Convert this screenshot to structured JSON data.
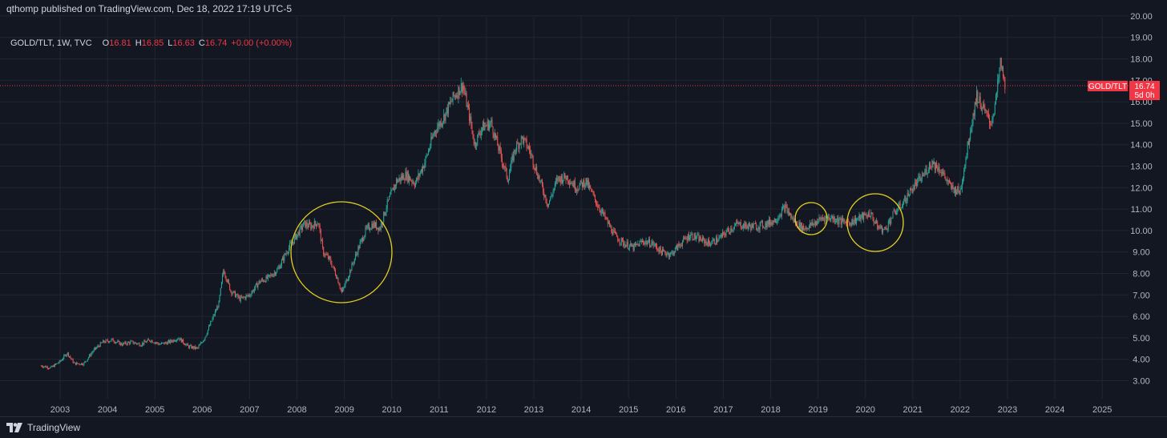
{
  "header": {
    "publish_text": "qthomp published on TradingView.com, Dec 18, 2022 17:19 UTC-5"
  },
  "legend": {
    "symbol": "GOLD/TLT, 1W, TVC",
    "o_label": "O",
    "o_value": "16.81",
    "h_label": "H",
    "h_value": "16.85",
    "l_label": "L",
    "l_value": "16.63",
    "c_label": "C",
    "c_value": "16.74",
    "change": "+0.00 (+0.00%)"
  },
  "price_tag": {
    "name": "GOLD/TLT",
    "price": "16.74",
    "countdown": "5d 0h",
    "color": "#f23645"
  },
  "footer": {
    "brand": "TradingView"
  },
  "colors": {
    "up": "#26a69a",
    "down": "#ef5350",
    "circle": "#e6d11e",
    "grid": "#222632",
    "text": "#b2b5be"
  },
  "chart_data": {
    "type": "candlestick",
    "title": "GOLD/TLT, 1W, TVC",
    "ylim": [
      2.5,
      20.0
    ],
    "y_ticks": [
      "3.00",
      "4.00",
      "5.00",
      "6.00",
      "7.00",
      "8.00",
      "9.00",
      "10.00",
      "11.00",
      "12.00",
      "13.00",
      "14.00",
      "15.00",
      "16.00",
      "17.00",
      "18.00",
      "19.00",
      "20.00"
    ],
    "x_ticks": [
      "2003",
      "2004",
      "2005",
      "2006",
      "2007",
      "2008",
      "2009",
      "2010",
      "2011",
      "2012",
      "2013",
      "2014",
      "2015",
      "2016",
      "2017",
      "2018",
      "2019",
      "2020",
      "2021",
      "2022",
      "2023",
      "2024",
      "2025"
    ],
    "x_range": [
      2002.52,
      2025.9
    ],
    "last_close": 16.74,
    "series": [
      {
        "x": [
          2002.6,
          2002.8,
          2003.0,
          2003.15,
          2003.3,
          2003.5,
          2003.7,
          2003.9,
          2004.1,
          2004.3,
          2004.5,
          2004.7,
          2004.9,
          2005.1,
          2005.3,
          2005.5,
          2005.7,
          2005.9,
          2006.05,
          2006.2,
          2006.35,
          2006.45,
          2006.6,
          2006.8,
          2007.0,
          2007.2,
          2007.4,
          2007.6,
          2007.8,
          2008.0,
          2008.15,
          2008.3,
          2008.45,
          2008.55,
          2008.7,
          2008.85,
          2008.95,
          2009.1,
          2009.3,
          2009.45,
          2009.6,
          2009.75,
          2009.9,
          2010.1,
          2010.3,
          2010.5,
          2010.7,
          2010.9,
          2011.1,
          2011.3,
          2011.5,
          2011.65,
          2011.75,
          2011.9,
          2012.1,
          2012.3,
          2012.45,
          2012.6,
          2012.75,
          2012.9,
          2013.1,
          2013.3,
          2013.5,
          2013.7,
          2013.9,
          2014.1,
          2014.3,
          2014.5,
          2014.7,
          2014.9,
          2015.1,
          2015.3,
          2015.5,
          2015.7,
          2015.9,
          2016.1,
          2016.3,
          2016.5,
          2016.7,
          2016.9,
          2017.1,
          2017.3,
          2017.5,
          2017.7,
          2017.9,
          2018.1,
          2018.3,
          2018.5,
          2018.7,
          2018.9,
          2019.1,
          2019.3,
          2019.5,
          2019.7,
          2019.9,
          2020.1,
          2020.25,
          2020.4,
          2020.6,
          2020.8,
          2021.0,
          2021.2,
          2021.4,
          2021.6,
          2021.8,
          2022.0,
          2022.2,
          2022.35,
          2022.5,
          2022.65,
          2022.75,
          2022.85,
          2022.95
        ],
        "y": [
          3.7,
          3.6,
          3.9,
          4.3,
          3.8,
          3.8,
          4.4,
          4.8,
          4.9,
          4.7,
          4.8,
          4.7,
          4.9,
          4.7,
          4.8,
          5.0,
          4.6,
          4.5,
          5.0,
          5.8,
          6.6,
          8.2,
          7.2,
          6.8,
          7.0,
          7.6,
          7.8,
          8.2,
          9.1,
          9.8,
          10.3,
          10.2,
          10.4,
          9.0,
          8.6,
          7.8,
          7.1,
          8.0,
          9.2,
          10.0,
          10.3,
          10.1,
          11.2,
          12.3,
          12.6,
          12.2,
          13.2,
          14.6,
          15.3,
          16.2,
          16.8,
          15.2,
          14.0,
          14.8,
          15.0,
          13.5,
          12.4,
          13.8,
          14.3,
          13.8,
          12.5,
          11.2,
          12.4,
          12.5,
          12.0,
          12.3,
          11.4,
          10.6,
          9.8,
          9.4,
          9.2,
          9.5,
          9.4,
          9.0,
          8.9,
          9.4,
          9.8,
          9.6,
          9.4,
          9.6,
          10.0,
          10.3,
          10.2,
          10.2,
          10.3,
          10.5,
          11.1,
          10.4,
          10.1,
          10.3,
          10.6,
          10.6,
          10.4,
          10.4,
          10.6,
          10.8,
          10.2,
          10.0,
          10.8,
          11.3,
          12.0,
          12.5,
          13.2,
          12.8,
          12.0,
          11.8,
          14.5,
          16.3,
          15.6,
          15.0,
          16.0,
          17.8,
          16.74
        ]
      }
    ]
  }
}
